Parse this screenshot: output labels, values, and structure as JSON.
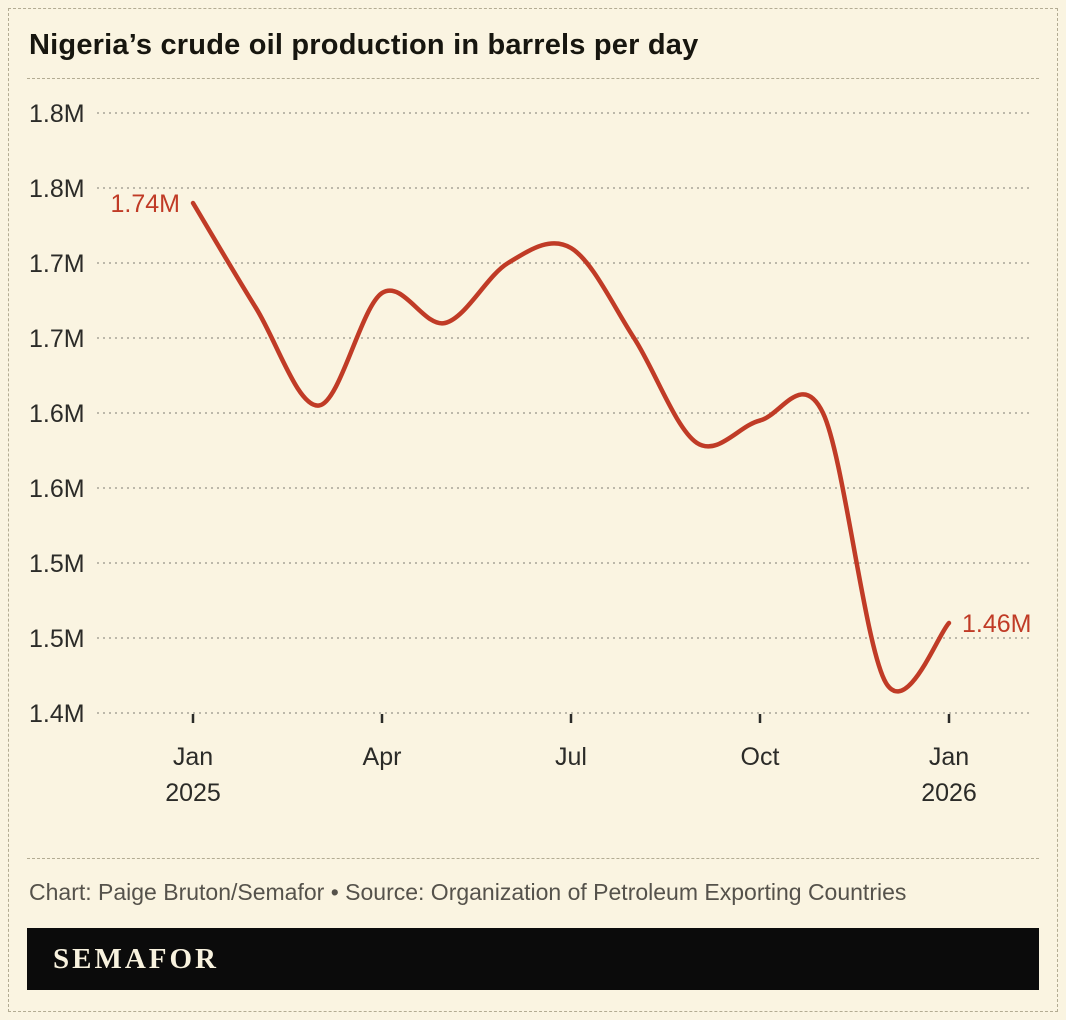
{
  "title": "Nigeria’s crude oil production in barrels per day",
  "caption": "Chart: Paige Bruton/Semafor • Source: Organization of Petroleum Exporting Countries",
  "brand": {
    "logo_text": "SEMAFOR"
  },
  "colors": {
    "background": "#faf4e1",
    "line": "#c03b26",
    "grid": "#98948a",
    "frame_border": "#b3ac93",
    "axis_text": "#2b2b28",
    "caption_text": "#55524b",
    "banner_bg": "#0b0b0b",
    "banner_text": "#f8f2de"
  },
  "chart_data": {
    "type": "line",
    "title": "Nigeria’s crude oil production in barrels per day",
    "xlabel": "",
    "ylabel": "",
    "unit": "million barrels per day",
    "x": [
      "Jan 2025",
      "Feb 2025",
      "Mar 2025",
      "Apr 2025",
      "May 2025",
      "Jun 2025",
      "Jul 2025",
      "Aug 2025",
      "Sep 2025",
      "Oct 2025",
      "Nov 2025",
      "Dec 2025",
      "Jan 2026"
    ],
    "values": [
      1.74,
      1.67,
      1.605,
      1.68,
      1.66,
      1.7,
      1.71,
      1.65,
      1.58,
      1.595,
      1.6,
      1.42,
      1.46
    ],
    "ylim": [
      1.4,
      1.8
    ],
    "grid": true,
    "legend": false,
    "line_color": "#c03b26",
    "y_ticks": [
      {
        "value": 1.8,
        "label": "1.8M"
      },
      {
        "value": 1.75,
        "label": "1.8M"
      },
      {
        "value": 1.7,
        "label": "1.7M"
      },
      {
        "value": 1.65,
        "label": "1.7M"
      },
      {
        "value": 1.6,
        "label": "1.6M"
      },
      {
        "value": 1.55,
        "label": "1.6M"
      },
      {
        "value": 1.5,
        "label": "1.5M"
      },
      {
        "value": 1.45,
        "label": "1.5M"
      },
      {
        "value": 1.4,
        "label": "1.4M"
      }
    ],
    "x_ticks": [
      {
        "month_index": 0,
        "label": "Jan",
        "sub_label": "2025"
      },
      {
        "month_index": 3,
        "label": "Apr",
        "sub_label": ""
      },
      {
        "month_index": 6,
        "label": "Jul",
        "sub_label": ""
      },
      {
        "month_index": 9,
        "label": "Oct",
        "sub_label": ""
      },
      {
        "month_index": 12,
        "label": "Jan",
        "sub_label": "2026"
      }
    ],
    "point_labels": {
      "start": "1.74M",
      "end": "1.46M"
    }
  }
}
